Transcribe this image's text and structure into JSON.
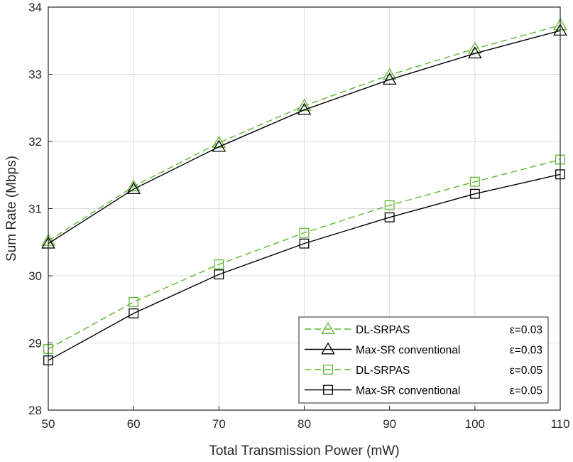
{
  "chart_data": {
    "type": "line",
    "title": "",
    "xlabel": "Total Transmission Power (mW)",
    "ylabel": "Sum Rate (Mbps)",
    "x": [
      50,
      60,
      70,
      80,
      90,
      100,
      110
    ],
    "xlim": [
      50,
      110
    ],
    "ylim": [
      28,
      34
    ],
    "xticks": [
      50,
      60,
      70,
      80,
      90,
      100,
      110
    ],
    "yticks": [
      28,
      29,
      30,
      31,
      32,
      33,
      34
    ],
    "grid": true,
    "legend_position": "bottom-right",
    "series": [
      {
        "name": "DL-SRPAS",
        "epsilon_label": "ε=0.03",
        "values": [
          30.52,
          31.33,
          31.98,
          32.53,
          32.99,
          33.38,
          33.73
        ],
        "color": "#5cb82e",
        "dashed": true,
        "marker": "triangle"
      },
      {
        "name": "Max-SR conventional",
        "epsilon_label": "ε=0.03",
        "values": [
          30.48,
          31.29,
          31.92,
          32.47,
          32.92,
          33.31,
          33.65
        ],
        "color": "#000000",
        "dashed": false,
        "marker": "triangle"
      },
      {
        "name": "DL-SRPAS",
        "epsilon_label": "ε=0.05",
        "values": [
          28.91,
          29.61,
          30.17,
          30.64,
          31.05,
          31.4,
          31.73
        ],
        "color": "#5cb82e",
        "dashed": true,
        "marker": "square"
      },
      {
        "name": "Max-SR conventional",
        "epsilon_label": "ε=0.05",
        "values": [
          28.74,
          29.44,
          30.02,
          30.48,
          30.87,
          31.22,
          31.51
        ],
        "color": "#000000",
        "dashed": false,
        "marker": "square"
      }
    ]
  }
}
